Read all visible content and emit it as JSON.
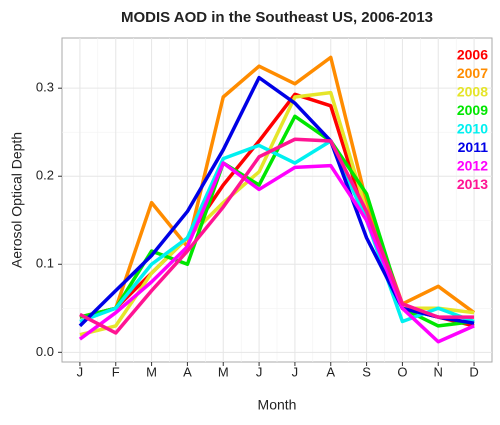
{
  "chart_data": {
    "type": "line",
    "title": "MODIS AOD in the Southeast US, 2006-2013",
    "x_label": "Month",
    "y_label": "Aerosol Optical Depth",
    "categories": [
      "J",
      "F",
      "M",
      "A",
      "M",
      "J",
      "J",
      "A",
      "S",
      "O",
      "N",
      "D"
    ],
    "ylim": [
      -0.011,
      0.357
    ],
    "yticks": [
      {
        "value": 0,
        "label": "0.0"
      },
      0.1,
      0.2,
      0.3
    ],
    "grid": true,
    "legend_position": "top-right",
    "series": [
      {
        "name": "2006",
        "color": "#ff0000",
        "values": [
          0.04,
          0.05,
          0.09,
          0.13,
          0.19,
          0.24,
          0.293,
          0.28,
          0.15,
          0.05,
          0.04,
          0.03
        ]
      },
      {
        "name": "2007",
        "color": "#ff8c00",
        "values": [
          0.04,
          0.05,
          0.17,
          0.12,
          0.29,
          0.325,
          0.305,
          0.335,
          0.17,
          0.055,
          0.075,
          0.045
        ]
      },
      {
        "name": "2008",
        "color": "#e5e52a",
        "values": [
          0.02,
          0.03,
          0.09,
          0.13,
          0.17,
          0.205,
          0.29,
          0.295,
          0.16,
          0.05,
          0.05,
          0.045
        ]
      },
      {
        "name": "2009",
        "color": "#00e600",
        "values": [
          0.04,
          0.05,
          0.115,
          0.1,
          0.215,
          0.19,
          0.268,
          0.24,
          0.18,
          0.05,
          0.03,
          0.035
        ]
      },
      {
        "name": "2010",
        "color": "#00f0f0",
        "values": [
          0.035,
          0.05,
          0.1,
          0.13,
          0.22,
          0.235,
          0.215,
          0.24,
          0.15,
          0.035,
          0.05,
          0.035
        ]
      },
      {
        "name": "2011",
        "color": "#0000e6",
        "values": [
          0.03,
          0.07,
          0.11,
          0.16,
          0.23,
          0.312,
          0.283,
          0.24,
          0.13,
          0.05,
          0.04,
          0.033
        ]
      },
      {
        "name": "2012",
        "color": "#ff00ff",
        "values": [
          0.015,
          0.045,
          0.08,
          0.12,
          0.215,
          0.185,
          0.21,
          0.212,
          0.15,
          0.05,
          0.012,
          0.03
        ]
      },
      {
        "name": "2013",
        "color": "#ff1493",
        "values": [
          0.043,
          0.022,
          0.07,
          0.115,
          0.165,
          0.222,
          0.242,
          0.24,
          0.16,
          0.055,
          0.04,
          0.04
        ]
      }
    ]
  }
}
